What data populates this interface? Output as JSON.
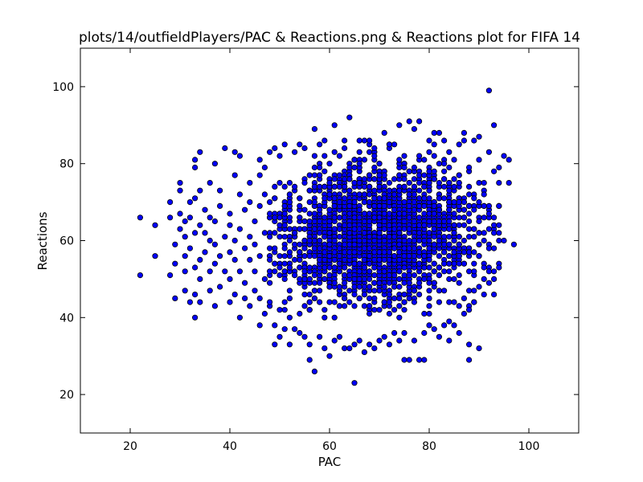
{
  "chart_data": {
    "type": "scatter",
    "title": "plots/14/outfieldPlayers/PAC & Reactions.png & Reactions plot for FIFA 14",
    "xlabel": "PAC",
    "ylabel": "Reactions",
    "xlim": [
      10,
      110
    ],
    "ylim": [
      10,
      110
    ],
    "xticks": [
      20,
      40,
      60,
      80,
      100
    ],
    "yticks": [
      20,
      40,
      60,
      80,
      100
    ],
    "grid": false,
    "marker_color": "#0000ff",
    "marker_edge": "#000000",
    "dense_core": {
      "x_range": [
        48,
        94
      ],
      "y_range": [
        40,
        86
      ],
      "center": [
        70,
        62
      ],
      "note": "thousands of overlapping points"
    },
    "points": [
      [
        22,
        51
      ],
      [
        22,
        66
      ],
      [
        25,
        56
      ],
      [
        25,
        64
      ],
      [
        28,
        51
      ],
      [
        28,
        66
      ],
      [
        28,
        70
      ],
      [
        29,
        45
      ],
      [
        29,
        54
      ],
      [
        29,
        59
      ],
      [
        30,
        63
      ],
      [
        30,
        67
      ],
      [
        30,
        73
      ],
      [
        30,
        75
      ],
      [
        31,
        47
      ],
      [
        31,
        52
      ],
      [
        31,
        56
      ],
      [
        31,
        61
      ],
      [
        31,
        65
      ],
      [
        32,
        44
      ],
      [
        32,
        58
      ],
      [
        32,
        66
      ],
      [
        32,
        70
      ],
      [
        33,
        40
      ],
      [
        33,
        46
      ],
      [
        33,
        53
      ],
      [
        33,
        62
      ],
      [
        33,
        71
      ],
      [
        33,
        79
      ],
      [
        33,
        81
      ],
      [
        34,
        44
      ],
      [
        34,
        50
      ],
      [
        34,
        55
      ],
      [
        34,
        64
      ],
      [
        34,
        73
      ],
      [
        34,
        83
      ],
      [
        35,
        57
      ],
      [
        35,
        62
      ],
      [
        35,
        68
      ],
      [
        36,
        47
      ],
      [
        36,
        52
      ],
      [
        36,
        60
      ],
      [
        36,
        66
      ],
      [
        36,
        75
      ],
      [
        37,
        43
      ],
      [
        37,
        54
      ],
      [
        37,
        59
      ],
      [
        37,
        65
      ],
      [
        37,
        80
      ],
      [
        38,
        48
      ],
      [
        38,
        56
      ],
      [
        38,
        69
      ],
      [
        38,
        73
      ],
      [
        39,
        52
      ],
      [
        39,
        61
      ],
      [
        39,
        84
      ],
      [
        40,
        44
      ],
      [
        40,
        50
      ],
      [
        40,
        57
      ],
      [
        40,
        64
      ],
      [
        40,
        67
      ],
      [
        41,
        46
      ],
      [
        41,
        55
      ],
      [
        41,
        60
      ],
      [
        41,
        77
      ],
      [
        41,
        83
      ],
      [
        42,
        40
      ],
      [
        42,
        52
      ],
      [
        42,
        63
      ],
      [
        42,
        72
      ],
      [
        42,
        82
      ],
      [
        43,
        45
      ],
      [
        43,
        49
      ],
      [
        43,
        58
      ],
      [
        43,
        68
      ],
      [
        44,
        43
      ],
      [
        44,
        55
      ],
      [
        44,
        61
      ],
      [
        44,
        70
      ],
      [
        44,
        75
      ],
      [
        45,
        47
      ],
      [
        45,
        52
      ],
      [
        45,
        59
      ],
      [
        45,
        65
      ],
      [
        46,
        38
      ],
      [
        46,
        45
      ],
      [
        46,
        56
      ],
      [
        46,
        69
      ],
      [
        46,
        77
      ],
      [
        46,
        81
      ],
      [
        47,
        41
      ],
      [
        47,
        50
      ],
      [
        47,
        62
      ],
      [
        47,
        72
      ],
      [
        47,
        79
      ],
      [
        48,
        44
      ],
      [
        48,
        55
      ],
      [
        48,
        67
      ],
      [
        48,
        83
      ],
      [
        49,
        33
      ],
      [
        49,
        38
      ],
      [
        49,
        74
      ],
      [
        49,
        84
      ],
      [
        50,
        35
      ],
      [
        50,
        42
      ],
      [
        51,
        37
      ],
      [
        51,
        85
      ],
      [
        52,
        33
      ],
      [
        53,
        37
      ],
      [
        53,
        83
      ],
      [
        54,
        36
      ],
      [
        54,
        85
      ],
      [
        55,
        35
      ],
      [
        55,
        84
      ],
      [
        56,
        29
      ],
      [
        56,
        33
      ],
      [
        57,
        26
      ],
      [
        57,
        82
      ],
      [
        57,
        89
      ],
      [
        58,
        35
      ],
      [
        59,
        32
      ],
      [
        59,
        86
      ],
      [
        60,
        30
      ],
      [
        61,
        34
      ],
      [
        61,
        90
      ],
      [
        62,
        35
      ],
      [
        63,
        32
      ],
      [
        63,
        86
      ],
      [
        64,
        32
      ],
      [
        64,
        92
      ],
      [
        65,
        23
      ],
      [
        65,
        33
      ],
      [
        66,
        34
      ],
      [
        67,
        31
      ],
      [
        68,
        33
      ],
      [
        68,
        86
      ],
      [
        69,
        32
      ],
      [
        70,
        34
      ],
      [
        71,
        35
      ],
      [
        71,
        88
      ],
      [
        72,
        33
      ],
      [
        73,
        36
      ],
      [
        74,
        34
      ],
      [
        74,
        90
      ],
      [
        75,
        29
      ],
      [
        75,
        36
      ],
      [
        76,
        29
      ],
      [
        76,
        91
      ],
      [
        77,
        34
      ],
      [
        77,
        89
      ],
      [
        78,
        29
      ],
      [
        78,
        91
      ],
      [
        79,
        36
      ],
      [
        79,
        29
      ],
      [
        80,
        38
      ],
      [
        80,
        86
      ],
      [
        81,
        37
      ],
      [
        81,
        88
      ],
      [
        82,
        35
      ],
      [
        82,
        88
      ],
      [
        83,
        38
      ],
      [
        83,
        86
      ],
      [
        84,
        34
      ],
      [
        84,
        39
      ],
      [
        85,
        38
      ],
      [
        86,
        36
      ],
      [
        86,
        85
      ],
      [
        87,
        45
      ],
      [
        87,
        88
      ],
      [
        88,
        29
      ],
      [
        88,
        33
      ],
      [
        88,
        47
      ],
      [
        88,
        79
      ],
      [
        89,
        44
      ],
      [
        89,
        86
      ],
      [
        90,
        32
      ],
      [
        90,
        48
      ],
      [
        90,
        87
      ],
      [
        91,
        50
      ],
      [
        91,
        75
      ],
      [
        92,
        99
      ],
      [
        92,
        52
      ],
      [
        92,
        83
      ],
      [
        93,
        90
      ],
      [
        93,
        58
      ],
      [
        93,
        78
      ],
      [
        94,
        60
      ],
      [
        95,
        82
      ],
      [
        95,
        60
      ],
      [
        96,
        75
      ],
      [
        96,
        81
      ],
      [
        97,
        59
      ]
    ]
  }
}
